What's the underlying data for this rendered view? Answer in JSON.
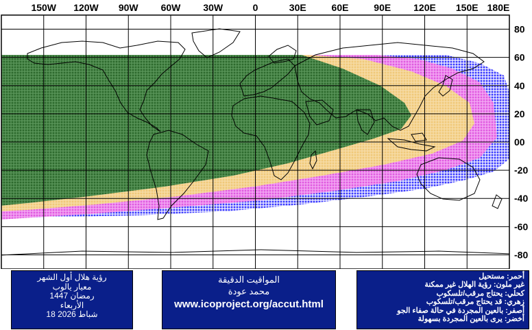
{
  "map": {
    "lon_labels": [
      "150W",
      "120W",
      "90W",
      "60W",
      "30W",
      "0",
      "30E",
      "60E",
      "90E",
      "120E",
      "150E",
      "180E"
    ],
    "lat_labels": [
      "80",
      "60",
      "40",
      "20",
      "00",
      "-20",
      "-40",
      "-60",
      "-80"
    ],
    "colors": {
      "green": "#2d6a2d",
      "yellow": "#f0c878",
      "magenta": "#e66ae6",
      "blue": "#3a3aff",
      "grid": "#000000",
      "coast": "#000000"
    }
  },
  "panel_left": {
    "lines": [
      "رؤية هلال أول الشهر",
      "معيار يالوب",
      "رمضان 1447",
      "الأربعاء",
      "18 شباط 2026"
    ]
  },
  "panel_mid": {
    "line1": "المواقيت الدقيقة",
    "line2": "محمد عودة",
    "line3": "www.icoproject.org/accut.html"
  },
  "panel_right": {
    "lines": [
      "أحمر: مستحيل",
      "غير ملون: رؤية الهلال غير ممكنة",
      "كحلي: يحتاج مرقب/تلسكوب",
      "زهري: قد يحتاج مرقب/تلسكوب",
      "أصفر: بالعين المجردة في حالة صفاء الجو",
      "أخضر: يرى بالعين المجردة بسهولة"
    ]
  }
}
